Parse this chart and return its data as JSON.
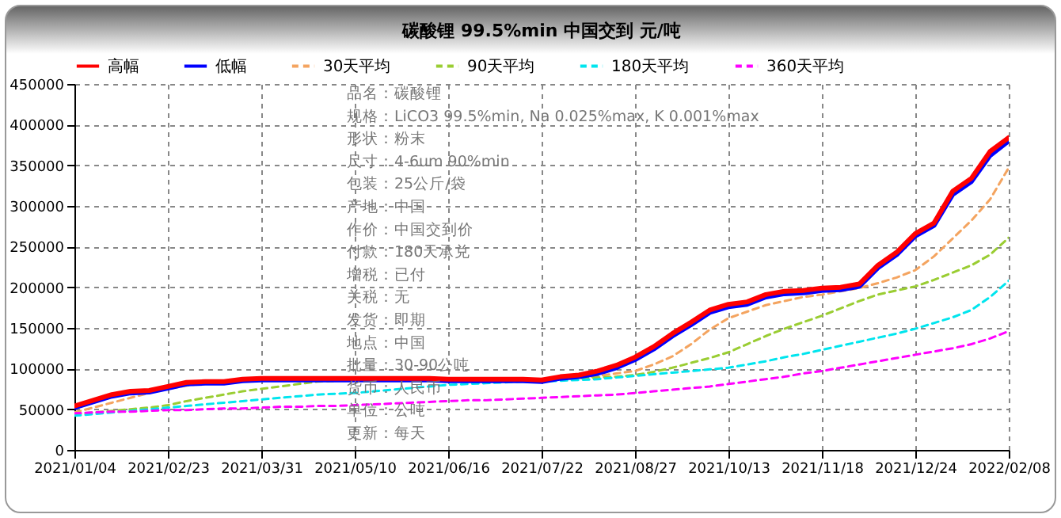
{
  "chart_data": {
    "type": "line",
    "title": "碳酸锂 99.5%min 中国交到 元/吨",
    "categories": [
      "2021/01/04",
      null,
      null,
      null,
      null,
      "2021/02/23",
      null,
      null,
      null,
      null,
      "2021/03/31",
      null,
      null,
      null,
      null,
      "2021/05/10",
      null,
      null,
      null,
      null,
      "2021/06/16",
      null,
      null,
      null,
      null,
      "2021/07/22",
      null,
      null,
      null,
      null,
      "2021/08/27",
      null,
      null,
      null,
      null,
      "2021/10/13",
      null,
      null,
      null,
      null,
      "2021/11/18",
      null,
      null,
      null,
      null,
      "2021/12/24",
      null,
      null,
      null,
      null,
      "2022/02/08"
    ],
    "series": [
      {
        "name": "高幅",
        "color": "#ff0000",
        "values": [
          54000,
          61000,
          68000,
          72000,
          73000,
          78000,
          83000,
          84000,
          84000,
          87000,
          88000,
          88000,
          88000,
          88000,
          88000,
          88000,
          88000,
          88000,
          88000,
          88000,
          87000,
          87000,
          87000,
          87000,
          87000,
          86000,
          90000,
          92000,
          97000,
          104000,
          114000,
          127000,
          143000,
          157000,
          172000,
          179000,
          182000,
          191000,
          195000,
          196000,
          199000,
          200000,
          204000,
          227000,
          243000,
          266000,
          279000,
          318000,
          334000,
          367000,
          384000
        ]
      },
      {
        "name": "低幅",
        "color": "#0000ff",
        "values": [
          52000,
          59000,
          66000,
          70000,
          71000,
          76000,
          81000,
          82000,
          82000,
          85000,
          86000,
          86000,
          86000,
          86000,
          86000,
          86000,
          86000,
          86000,
          86000,
          86000,
          85000,
          85000,
          85000,
          85000,
          85000,
          84000,
          88000,
          90000,
          94000,
          101000,
          111000,
          124000,
          140000,
          154000,
          169000,
          176000,
          179000,
          188000,
          192000,
          193000,
          196000,
          197000,
          201000,
          224000,
          240000,
          263000,
          276000,
          314000,
          330000,
          362000,
          380000
        ]
      },
      {
        "name": "30天平均",
        "color": "#f4a460",
        "line_style": "dashed",
        "values": [
          46000,
          52000,
          58000,
          64000,
          70000,
          75000,
          79000,
          82000,
          84000,
          85000,
          86000,
          86000,
          86000,
          86000,
          86000,
          86000,
          86000,
          86000,
          86000,
          86000,
          86000,
          86000,
          86000,
          86000,
          86000,
          86000,
          87000,
          88000,
          91000,
          94000,
          97000,
          105000,
          115000,
          130000,
          148000,
          162000,
          170000,
          178000,
          183000,
          188000,
          191000,
          195000,
          199000,
          205000,
          212000,
          221000,
          238000,
          260000,
          282000,
          308000,
          347000
        ]
      },
      {
        "name": "90天平均",
        "color": "#9acd32",
        "line_style": "dashed",
        "values": [
          44000,
          46000,
          48000,
          50000,
          52000,
          55000,
          60000,
          64000,
          68000,
          72000,
          75000,
          78000,
          81000,
          84000,
          85000,
          86000,
          86000,
          86000,
          86000,
          86000,
          86000,
          86000,
          86000,
          86000,
          86000,
          86000,
          87000,
          88000,
          89000,
          90000,
          92000,
          96000,
          101000,
          107000,
          113000,
          120000,
          130000,
          140000,
          149000,
          157000,
          165000,
          174000,
          183000,
          191000,
          196000,
          201000,
          209000,
          218000,
          227000,
          240000,
          261000
        ]
      },
      {
        "name": "180天平均",
        "color": "#00e5ee",
        "line_style": "dashed",
        "values": [
          42000,
          44000,
          46000,
          48000,
          50000,
          52000,
          54000,
          56000,
          58000,
          60000,
          62000,
          64000,
          66000,
          68000,
          69000,
          70000,
          72000,
          74000,
          76000,
          78000,
          80000,
          81000,
          82000,
          83000,
          84000,
          84000,
          85000,
          86000,
          87000,
          89000,
          91000,
          93000,
          95000,
          97000,
          99000,
          101000,
          105000,
          109000,
          114000,
          118000,
          123000,
          128000,
          133000,
          138000,
          143000,
          149000,
          156000,
          163000,
          172000,
          188000,
          208000
        ]
      },
      {
        "name": "360天平均",
        "color": "#ff00ff",
        "line_style": "dashed",
        "values": [
          45000,
          46000,
          47000,
          47000,
          48000,
          49000,
          49000,
          50000,
          51000,
          51000,
          52000,
          53000,
          53000,
          54000,
          54000,
          55000,
          56000,
          57000,
          58000,
          59000,
          60000,
          61000,
          61000,
          62000,
          63000,
          64000,
          65000,
          66000,
          67000,
          68000,
          70000,
          72000,
          74000,
          76000,
          78000,
          81000,
          84000,
          87000,
          90000,
          94000,
          97000,
          101000,
          105000,
          109000,
          113000,
          117000,
          121000,
          125000,
          130000,
          137000,
          146000
        ]
      }
    ],
    "ylim": [
      0,
      450000
    ],
    "yticks": [
      0,
      50000,
      100000,
      150000,
      200000,
      250000,
      300000,
      350000,
      400000,
      450000
    ],
    "grid": true,
    "legend": "top",
    "marker": "none",
    "annotations": [
      "品名：碳酸锂",
      "规格：LiCO3 99.5%min, Na 0.025%max, K 0.001%max",
      "形状：粉末",
      "尺寸：4-6um 90%min",
      "包装：25公斤/袋",
      "产地：中国",
      "作价：中国交到价",
      "付款：180天承兑",
      "增税：已付",
      "关税：无",
      "发货：即期",
      "地点：中国",
      "批量：30-90公吨",
      "货币：人民币",
      "单位：公吨",
      "更新：每天"
    ]
  }
}
